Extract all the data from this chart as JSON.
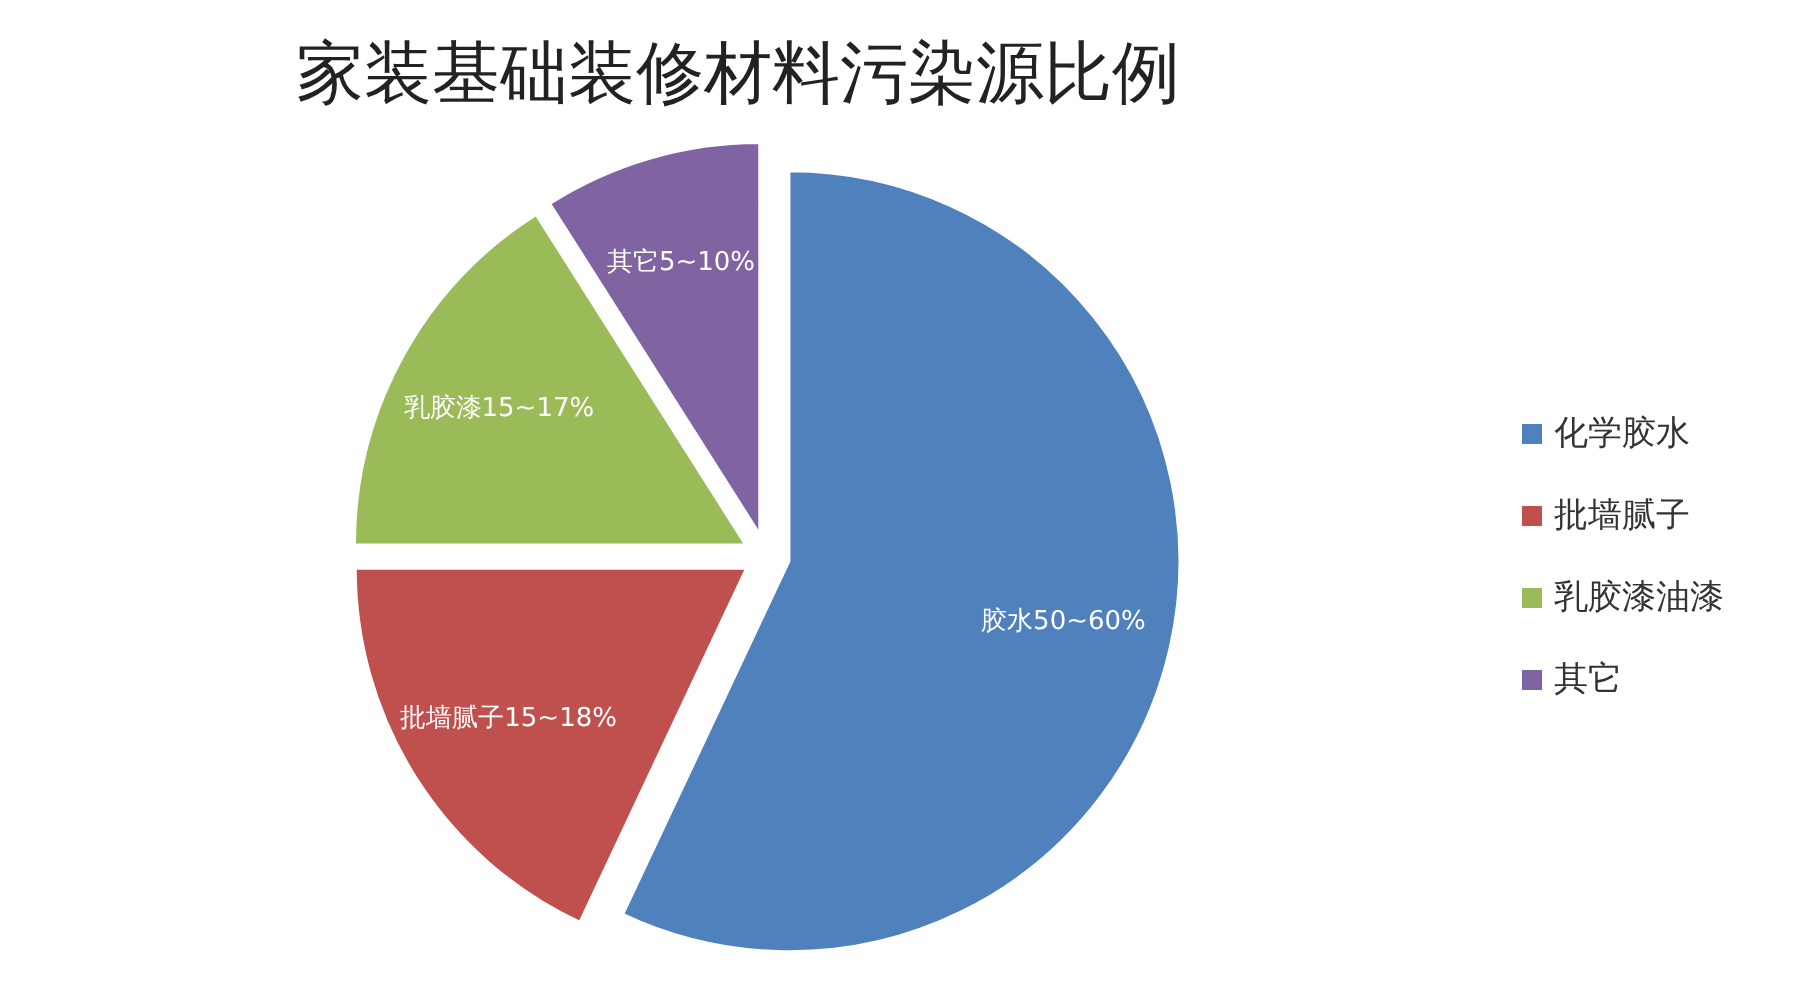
{
  "chart_data": {
    "type": "pie",
    "title": "家装基础装修材料污染源比例",
    "categories": [
      "化学胶水",
      "批墙腻子",
      "乳胶漆油漆",
      "其它"
    ],
    "values": [
      57,
      18,
      16,
      9
    ],
    "colors": [
      "#4f81bd",
      "#c0504d",
      "#9bbb59",
      "#8064a2"
    ],
    "annotations": [
      "胶水50~60%",
      "批墙腻子15~18%",
      "乳胶漆15~17%",
      "其它5~10%"
    ],
    "legend": "right"
  }
}
